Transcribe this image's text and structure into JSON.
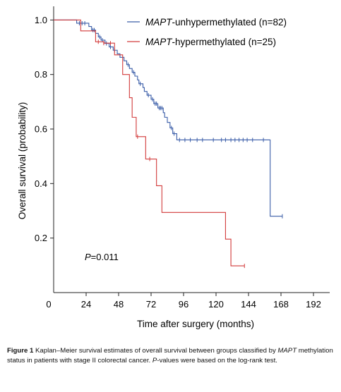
{
  "chart_data": {
    "type": "line",
    "subtype": "kaplan-meier",
    "xlabel": "Time after surgery (months)",
    "ylabel": "Overall survival (probability)",
    "xlim": [
      0,
      204
    ],
    "ylim": [
      0,
      1.05
    ],
    "xticks": [
      0,
      24,
      48,
      72,
      96,
      120,
      144,
      168,
      192
    ],
    "yticks": [
      0.2,
      0.4,
      0.6,
      0.8,
      1.0
    ],
    "ytick_labels": [
      "0.2",
      "0.4",
      "0.6",
      "0.8",
      "1.0"
    ],
    "grid": false,
    "legend_position": "top-right",
    "annotation": {
      "italic": "P",
      "text": "=0.011"
    },
    "series": [
      {
        "name_italic": "MAPT",
        "name_rest": "-unhypermethylated (n=82)",
        "color": "#3a5da8",
        "steps": [
          [
            0,
            1.0
          ],
          [
            17,
            0.988
          ],
          [
            26,
            0.976
          ],
          [
            28,
            0.963
          ],
          [
            31,
            0.951
          ],
          [
            33,
            0.938
          ],
          [
            35,
            0.926
          ],
          [
            38,
            0.914
          ],
          [
            41,
            0.901
          ],
          [
            44,
            0.889
          ],
          [
            47,
            0.876
          ],
          [
            49,
            0.863
          ],
          [
            52,
            0.85
          ],
          [
            54,
            0.836
          ],
          [
            56,
            0.822
          ],
          [
            58,
            0.808
          ],
          [
            60,
            0.794
          ],
          [
            62,
            0.78
          ],
          [
            63,
            0.766
          ],
          [
            66,
            0.752
          ],
          [
            67,
            0.738
          ],
          [
            69,
            0.724
          ],
          [
            72,
            0.709
          ],
          [
            74,
            0.693
          ],
          [
            77,
            0.677
          ],
          [
            81,
            0.66
          ],
          [
            82,
            0.643
          ],
          [
            84,
            0.624
          ],
          [
            86,
            0.604
          ],
          [
            88,
            0.583
          ],
          [
            91,
            0.56
          ],
          [
            160,
            0.28
          ],
          [
            169,
            0.28
          ]
        ],
        "censor_times": [
          19,
          21,
          23,
          29,
          30,
          34,
          36,
          39,
          42,
          45,
          55,
          59,
          64,
          70,
          73,
          75,
          76,
          78,
          79,
          80,
          87,
          89,
          93,
          97,
          101,
          106,
          110,
          118,
          124,
          127,
          131,
          134,
          137,
          140,
          143,
          147,
          155,
          169
        ]
      },
      {
        "name_italic": "MAPT",
        "name_rest": "-hypermethylated (n=25)",
        "color": "#d23a3a",
        "steps": [
          [
            0,
            1.0
          ],
          [
            20,
            0.96
          ],
          [
            31,
            0.92
          ],
          [
            37,
            0.915
          ],
          [
            45,
            0.872
          ],
          [
            51,
            0.8
          ],
          [
            56,
            0.715
          ],
          [
            58,
            0.643
          ],
          [
            61,
            0.572
          ],
          [
            68,
            0.49
          ],
          [
            76,
            0.392
          ],
          [
            80,
            0.294
          ],
          [
            127,
            0.196
          ],
          [
            131,
            0.098
          ],
          [
            141,
            0.098
          ]
        ],
        "censor_times": [
          33,
          37,
          42,
          62,
          71,
          141
        ]
      }
    ]
  },
  "caption": {
    "figure_label": "Figure 1",
    "text_before": "Kaplan–Meier survival estimates of overall survival between groups classified by ",
    "text_italic": "MAPT",
    "text_middle": " methylation status in patients with stage II colorectal cancer. ",
    "text_italic2": "P",
    "text_after": "-values were based on the log-rank test."
  }
}
